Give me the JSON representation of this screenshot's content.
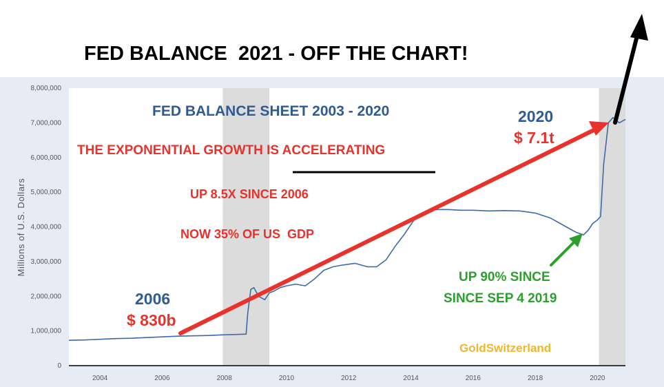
{
  "headline": "FED BALANCE  2021 - OFF THE CHART!",
  "colors": {
    "line": "#3d6aa8",
    "arrow_red": "#e8322c",
    "arrow_green": "#2ca02c",
    "arrow_black": "#000000",
    "title_blue": "#2e5b93",
    "text_red": "#e8322c",
    "text_green": "#2ca02c",
    "brand_gold": "#f1b52e",
    "recession_band": "#dcdcdc",
    "plot_frame": "#e6ecf3"
  },
  "chart_data": {
    "type": "line",
    "title": "FED BALANCE SHEET 2003 - 2020",
    "xlabel": "",
    "ylabel": "Millions of U.S. Dollars",
    "xlim": [
      2003.0,
      2020.9
    ],
    "ylim": [
      0,
      8000000
    ],
    "x_ticks": [
      2004,
      2006,
      2008,
      2010,
      2012,
      2014,
      2016,
      2018,
      2020
    ],
    "y_ticks": [
      0,
      1000000,
      2000000,
      3000000,
      4000000,
      5000000,
      6000000,
      7000000,
      8000000
    ],
    "y_tick_labels": [
      "0",
      "1,000,000",
      "2,000,000",
      "3,000,000",
      "4,000,000",
      "5,000,000",
      "6,000,000",
      "7,000,000",
      "8,000,000"
    ],
    "grid": false,
    "recession_bands": [
      [
        2007.95,
        2009.45
      ],
      [
        2020.05,
        2020.9
      ]
    ],
    "series": [
      {
        "name": "Fed balance sheet",
        "x": [
          2003.0,
          2003.5,
          2004.0,
          2004.5,
          2005.0,
          2005.5,
          2006.0,
          2006.5,
          2007.0,
          2007.5,
          2008.0,
          2008.4,
          2008.7,
          2008.75,
          2008.85,
          2008.95,
          2009.1,
          2009.3,
          2009.45,
          2009.6,
          2009.8,
          2010.0,
          2010.3,
          2010.6,
          2010.9,
          2011.2,
          2011.5,
          2011.8,
          2012.2,
          2012.6,
          2012.9,
          2013.2,
          2013.5,
          2013.8,
          2014.1,
          2014.4,
          2014.8,
          2015.2,
          2015.6,
          2016.0,
          2016.5,
          2017.0,
          2017.5,
          2018.0,
          2018.5,
          2019.0,
          2019.3,
          2019.55,
          2019.7,
          2019.85,
          2020.0,
          2020.1,
          2020.2,
          2020.35,
          2020.5,
          2020.7,
          2020.9
        ],
        "values": [
          730000,
          740000,
          760000,
          780000,
          790000,
          810000,
          830000,
          850000,
          860000,
          870000,
          890000,
          900000,
          910000,
          1500000,
          2200000,
          2250000,
          2000000,
          1900000,
          2100000,
          2150000,
          2250000,
          2300000,
          2350000,
          2300000,
          2500000,
          2750000,
          2850000,
          2900000,
          2950000,
          2850000,
          2850000,
          3050000,
          3450000,
          3800000,
          4200000,
          4400000,
          4500000,
          4500000,
          4480000,
          4480000,
          4460000,
          4470000,
          4460000,
          4400000,
          4250000,
          4000000,
          3850000,
          3770000,
          3900000,
          4100000,
          4200000,
          4300000,
          5800000,
          7000000,
          7150000,
          7000000,
          7100000
        ]
      }
    ],
    "annotations": [
      "THE EXPONENTIAL GROWTH IS ACCELERATING",
      "UP 8.5X SINCE 2006",
      "NOW 35% OF US  GDP",
      "2006",
      "$ 830b",
      "2020",
      "$ 7.1t",
      "UP 90% SINCE",
      "SINCE SEP 4 2019",
      "GoldSwitzerland"
    ]
  }
}
